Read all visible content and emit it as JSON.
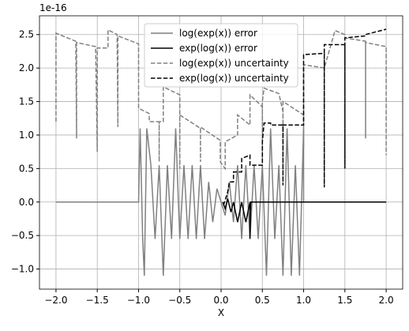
{
  "chart_data": {
    "type": "line",
    "offset_text": "1e-16",
    "xlabel": "X",
    "xlim": [
      -2.2,
      2.2
    ],
    "ylim": [
      -1.3,
      2.78
    ],
    "xticks": [
      {
        "value": -2,
        "label": "−2.0"
      },
      {
        "value": -1.5,
        "label": "−1.5"
      },
      {
        "value": -1,
        "label": "−1.0"
      },
      {
        "value": -0.5,
        "label": "−0.5"
      },
      {
        "value": 0,
        "label": "0.0"
      },
      {
        "value": 0.5,
        "label": "0.5"
      },
      {
        "value": 1,
        "label": "1.0"
      },
      {
        "value": 1.5,
        "label": "1.5"
      },
      {
        "value": 2,
        "label": "2.0"
      }
    ],
    "yticks": [
      {
        "value": -1,
        "label": "−1.0"
      },
      {
        "value": -0.5,
        "label": "−0.5"
      },
      {
        "value": 0,
        "label": "0.0"
      },
      {
        "value": 0.5,
        "label": "0.5"
      },
      {
        "value": 1,
        "label": "1.0"
      },
      {
        "value": 1.5,
        "label": "1.5"
      },
      {
        "value": 2,
        "label": "2.0"
      },
      {
        "value": 2.5,
        "label": "2.5"
      }
    ],
    "grid": true,
    "legend": "upper center",
    "series": [
      {
        "name": "log(exp(x)) error",
        "color": "#808080",
        "linestyle": "solid",
        "x": [
          -2,
          -1,
          -0.98,
          -0.95,
          -0.93,
          -0.9,
          -0.85,
          -0.8,
          -0.75,
          -0.7,
          -0.65,
          -0.6,
          -0.55,
          -0.5,
          -0.45,
          -0.4,
          -0.35,
          -0.3,
          -0.25,
          -0.2,
          -0.15,
          -0.1,
          -0.05,
          0,
          0.05,
          0.1,
          0.15,
          0.2,
          0.25,
          0.3,
          0.35,
          0.4,
          0.45,
          0.5,
          0.55,
          0.6,
          0.65,
          0.7,
          0.75,
          0.8,
          0.85,
          0.9,
          0.95,
          1,
          1,
          2
        ],
        "values": [
          0,
          0,
          1.1,
          -0.55,
          -1.1,
          1.1,
          0.55,
          -0.55,
          0.55,
          -1.1,
          0.55,
          -0.55,
          1.1,
          -0.55,
          0.55,
          -0.55,
          0.55,
          -0.55,
          0.55,
          -0.55,
          0.3,
          -0.3,
          0.2,
          0,
          -0.2,
          0.3,
          -0.3,
          0.55,
          -0.55,
          0.55,
          -0.55,
          0.55,
          -0.55,
          0.55,
          -1.1,
          1.1,
          -0.55,
          0.55,
          -1.1,
          1.1,
          -1.1,
          0.55,
          -1.1,
          1.1,
          0,
          0
        ]
      },
      {
        "name": "exp(log(x)) error",
        "color": "#000000",
        "linestyle": "solid",
        "x": [
          0.02,
          0.05,
          0.08,
          0.12,
          0.15,
          0.2,
          0.25,
          0.3,
          0.35,
          0.35,
          0.36,
          2
        ],
        "values": [
          0,
          -0.1,
          0.05,
          -0.15,
          0,
          -0.3,
          0,
          -0.3,
          0,
          -0.55,
          0,
          0
        ]
      },
      {
        "name": "log(exp(x)) uncertainty",
        "color": "#808080",
        "linestyle": "dashed",
        "x": [
          -2,
          -2,
          -1.76,
          -1.75,
          -1.75,
          -1.52,
          -1.5,
          -1.5,
          -1.37,
          -1.37,
          -1.26,
          -1.25,
          -1.25,
          -1,
          -1,
          -0.87,
          -0.87,
          -0.75,
          -0.75,
          -0.75,
          -0.7,
          -0.7,
          -0.5,
          -0.5,
          -0.5,
          -0.25,
          -0.25,
          -0.25,
          -0.01,
          -0.01,
          0.05,
          0.05,
          0.2,
          0.2,
          0.35,
          0.35,
          0.5,
          0.5,
          0.5,
          0.52,
          0.7,
          0.75,
          0.75,
          0.75,
          1,
          1,
          1,
          1.25,
          1.38,
          1.5,
          1.5,
          1.75,
          1.75,
          1.75,
          2,
          2
        ],
        "values": [
          1.2,
          2.52,
          2.4,
          0.95,
          2.38,
          2.32,
          0.75,
          2.3,
          2.3,
          2.57,
          2.5,
          1.12,
          2.48,
          2.36,
          1.4,
          1.32,
          1.2,
          1.2,
          0.6,
          1.2,
          1.2,
          1.72,
          1.6,
          0.5,
          1.3,
          1.1,
          0.6,
          1.12,
          0.92,
          0.6,
          0.5,
          0.9,
          1,
          1.3,
          1.15,
          1.6,
          1.42,
          0.6,
          1.5,
          1.7,
          1.62,
          1.35,
          1.05,
          1.5,
          1.3,
          0.8,
          2.05,
          2,
          2.56,
          2.5,
          2.45,
          2.4,
          0.95,
          2.38,
          2.32,
          0.7
        ]
      },
      {
        "name": "exp(log(x)) uncertainty",
        "color": "#000000",
        "linestyle": "dashed",
        "x": [
          0.03,
          0.08,
          0.1,
          0.15,
          0.15,
          0.25,
          0.25,
          0.35,
          0.35,
          0.5,
          0.5,
          0.52,
          0.6,
          0.6,
          0.75,
          0.75,
          0.75,
          1,
          1,
          1.25,
          1.25,
          1.25,
          1.5,
          1.5,
          1.5,
          1.75,
          1.75,
          2
        ],
        "values": [
          -0.05,
          0.15,
          0.3,
          0.3,
          0.45,
          0.45,
          0.65,
          0.7,
          0.55,
          0.55,
          0.9,
          1.18,
          1.18,
          1.15,
          1.15,
          0.25,
          1.15,
          1.15,
          2.2,
          2.22,
          0.22,
          2.35,
          2.35,
          0.5,
          2.45,
          2.48,
          2.5,
          2.58
        ]
      }
    ]
  }
}
